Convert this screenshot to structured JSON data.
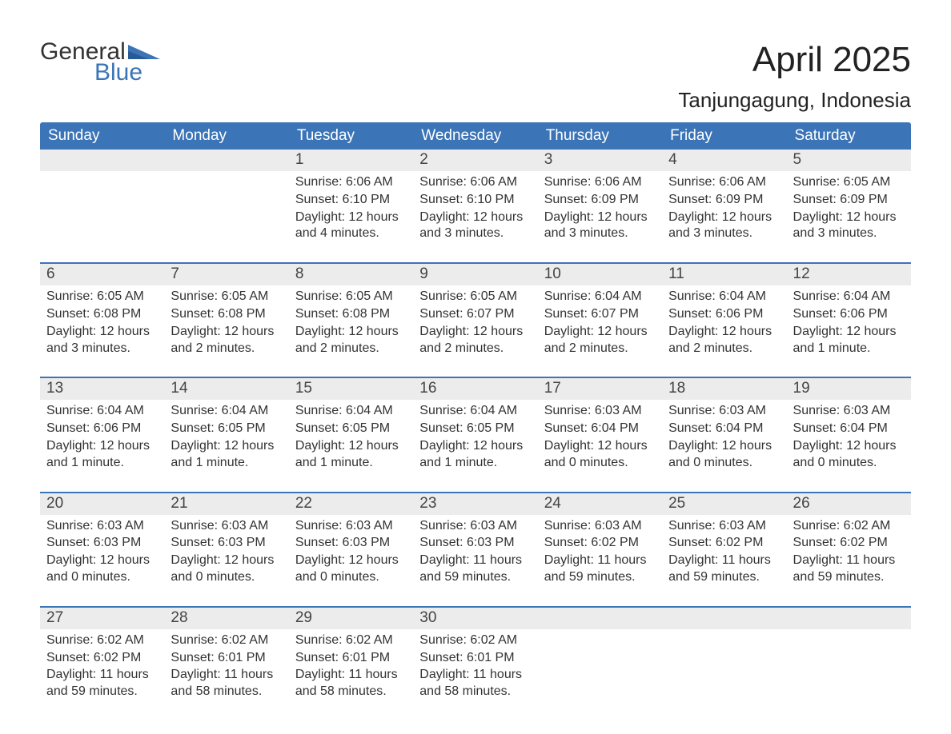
{
  "logo": {
    "text_top": "General",
    "text_bottom": "Blue",
    "accent_color": "#3b74b7"
  },
  "title": "April 2025",
  "location": "Tanjungagung, Indonesia",
  "colors": {
    "header_bg": "#3b74b7",
    "header_text": "#ffffff",
    "date_bar_bg": "#ececec",
    "border": "#3b74b7",
    "body_text": "#333333",
    "background": "#ffffff"
  },
  "font": {
    "family": "Arial",
    "title_size_pt": 33,
    "location_size_pt": 20,
    "weekday_size_pt": 14,
    "date_size_pt": 14,
    "body_size_pt": 12
  },
  "weekdays": [
    "Sunday",
    "Monday",
    "Tuesday",
    "Wednesday",
    "Thursday",
    "Friday",
    "Saturday"
  ],
  "weeks": [
    [
      {
        "date": "",
        "sunrise": "",
        "sunset": "",
        "daylight": ""
      },
      {
        "date": "",
        "sunrise": "",
        "sunset": "",
        "daylight": ""
      },
      {
        "date": "1",
        "sunrise": "Sunrise: 6:06 AM",
        "sunset": "Sunset: 6:10 PM",
        "daylight": "Daylight: 12 hours and 4 minutes."
      },
      {
        "date": "2",
        "sunrise": "Sunrise: 6:06 AM",
        "sunset": "Sunset: 6:10 PM",
        "daylight": "Daylight: 12 hours and 3 minutes."
      },
      {
        "date": "3",
        "sunrise": "Sunrise: 6:06 AM",
        "sunset": "Sunset: 6:09 PM",
        "daylight": "Daylight: 12 hours and 3 minutes."
      },
      {
        "date": "4",
        "sunrise": "Sunrise: 6:06 AM",
        "sunset": "Sunset: 6:09 PM",
        "daylight": "Daylight: 12 hours and 3 minutes."
      },
      {
        "date": "5",
        "sunrise": "Sunrise: 6:05 AM",
        "sunset": "Sunset: 6:09 PM",
        "daylight": "Daylight: 12 hours and 3 minutes."
      }
    ],
    [
      {
        "date": "6",
        "sunrise": "Sunrise: 6:05 AM",
        "sunset": "Sunset: 6:08 PM",
        "daylight": "Daylight: 12 hours and 3 minutes."
      },
      {
        "date": "7",
        "sunrise": "Sunrise: 6:05 AM",
        "sunset": "Sunset: 6:08 PM",
        "daylight": "Daylight: 12 hours and 2 minutes."
      },
      {
        "date": "8",
        "sunrise": "Sunrise: 6:05 AM",
        "sunset": "Sunset: 6:08 PM",
        "daylight": "Daylight: 12 hours and 2 minutes."
      },
      {
        "date": "9",
        "sunrise": "Sunrise: 6:05 AM",
        "sunset": "Sunset: 6:07 PM",
        "daylight": "Daylight: 12 hours and 2 minutes."
      },
      {
        "date": "10",
        "sunrise": "Sunrise: 6:04 AM",
        "sunset": "Sunset: 6:07 PM",
        "daylight": "Daylight: 12 hours and 2 minutes."
      },
      {
        "date": "11",
        "sunrise": "Sunrise: 6:04 AM",
        "sunset": "Sunset: 6:06 PM",
        "daylight": "Daylight: 12 hours and 2 minutes."
      },
      {
        "date": "12",
        "sunrise": "Sunrise: 6:04 AM",
        "sunset": "Sunset: 6:06 PM",
        "daylight": "Daylight: 12 hours and 1 minute."
      }
    ],
    [
      {
        "date": "13",
        "sunrise": "Sunrise: 6:04 AM",
        "sunset": "Sunset: 6:06 PM",
        "daylight": "Daylight: 12 hours and 1 minute."
      },
      {
        "date": "14",
        "sunrise": "Sunrise: 6:04 AM",
        "sunset": "Sunset: 6:05 PM",
        "daylight": "Daylight: 12 hours and 1 minute."
      },
      {
        "date": "15",
        "sunrise": "Sunrise: 6:04 AM",
        "sunset": "Sunset: 6:05 PM",
        "daylight": "Daylight: 12 hours and 1 minute."
      },
      {
        "date": "16",
        "sunrise": "Sunrise: 6:04 AM",
        "sunset": "Sunset: 6:05 PM",
        "daylight": "Daylight: 12 hours and 1 minute."
      },
      {
        "date": "17",
        "sunrise": "Sunrise: 6:03 AM",
        "sunset": "Sunset: 6:04 PM",
        "daylight": "Daylight: 12 hours and 0 minutes."
      },
      {
        "date": "18",
        "sunrise": "Sunrise: 6:03 AM",
        "sunset": "Sunset: 6:04 PM",
        "daylight": "Daylight: 12 hours and 0 minutes."
      },
      {
        "date": "19",
        "sunrise": "Sunrise: 6:03 AM",
        "sunset": "Sunset: 6:04 PM",
        "daylight": "Daylight: 12 hours and 0 minutes."
      }
    ],
    [
      {
        "date": "20",
        "sunrise": "Sunrise: 6:03 AM",
        "sunset": "Sunset: 6:03 PM",
        "daylight": "Daylight: 12 hours and 0 minutes."
      },
      {
        "date": "21",
        "sunrise": "Sunrise: 6:03 AM",
        "sunset": "Sunset: 6:03 PM",
        "daylight": "Daylight: 12 hours and 0 minutes."
      },
      {
        "date": "22",
        "sunrise": "Sunrise: 6:03 AM",
        "sunset": "Sunset: 6:03 PM",
        "daylight": "Daylight: 12 hours and 0 minutes."
      },
      {
        "date": "23",
        "sunrise": "Sunrise: 6:03 AM",
        "sunset": "Sunset: 6:03 PM",
        "daylight": "Daylight: 11 hours and 59 minutes."
      },
      {
        "date": "24",
        "sunrise": "Sunrise: 6:03 AM",
        "sunset": "Sunset: 6:02 PM",
        "daylight": "Daylight: 11 hours and 59 minutes."
      },
      {
        "date": "25",
        "sunrise": "Sunrise: 6:03 AM",
        "sunset": "Sunset: 6:02 PM",
        "daylight": "Daylight: 11 hours and 59 minutes."
      },
      {
        "date": "26",
        "sunrise": "Sunrise: 6:02 AM",
        "sunset": "Sunset: 6:02 PM",
        "daylight": "Daylight: 11 hours and 59 minutes."
      }
    ],
    [
      {
        "date": "27",
        "sunrise": "Sunrise: 6:02 AM",
        "sunset": "Sunset: 6:02 PM",
        "daylight": "Daylight: 11 hours and 59 minutes."
      },
      {
        "date": "28",
        "sunrise": "Sunrise: 6:02 AM",
        "sunset": "Sunset: 6:01 PM",
        "daylight": "Daylight: 11 hours and 58 minutes."
      },
      {
        "date": "29",
        "sunrise": "Sunrise: 6:02 AM",
        "sunset": "Sunset: 6:01 PM",
        "daylight": "Daylight: 11 hours and 58 minutes."
      },
      {
        "date": "30",
        "sunrise": "Sunrise: 6:02 AM",
        "sunset": "Sunset: 6:01 PM",
        "daylight": "Daylight: 11 hours and 58 minutes."
      },
      {
        "date": "",
        "sunrise": "",
        "sunset": "",
        "daylight": ""
      },
      {
        "date": "",
        "sunrise": "",
        "sunset": "",
        "daylight": ""
      },
      {
        "date": "",
        "sunrise": "",
        "sunset": "",
        "daylight": ""
      }
    ]
  ]
}
